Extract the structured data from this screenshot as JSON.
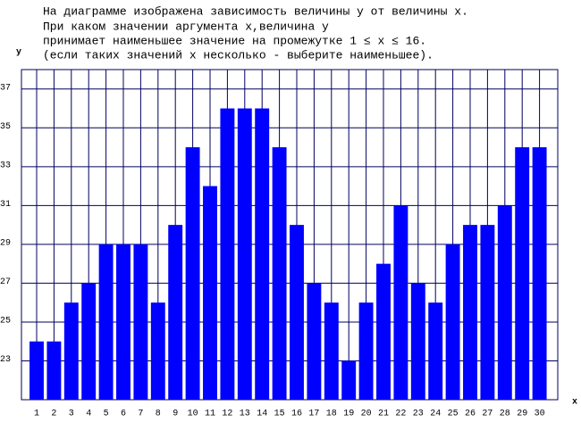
{
  "chart_data": {
    "type": "bar",
    "text_lines": [
      "На диаграмме изображена зависимость величины y от величины x.",
      "При каком значении аргумента x,величина y",
      "принимает наименьшее значение на промежутке 1 ≤ x ≤ 16.",
      "(если таких значений x несколько - выберите наименьшее)."
    ],
    "y_label": "y",
    "x_label": "x",
    "categories": [
      "1",
      "2",
      "3",
      "4",
      "5",
      "6",
      "7",
      "8",
      "9",
      "10",
      "11",
      "12",
      "13",
      "14",
      "15",
      "16",
      "17",
      "18",
      "19",
      "20",
      "21",
      "22",
      "23",
      "24",
      "25",
      "26",
      "27",
      "28",
      "29",
      "30"
    ],
    "values": [
      24,
      24,
      26,
      27,
      29,
      29,
      29,
      26,
      30,
      34,
      32,
      36,
      36,
      36,
      34,
      30,
      27,
      26,
      23,
      26,
      28,
      31,
      27,
      26,
      29,
      30,
      30,
      31,
      34,
      34
    ],
    "color": "#0000ff",
    "ylim": [
      21,
      38
    ],
    "yticks": [
      23,
      25,
      27,
      29,
      31,
      33,
      35,
      37
    ],
    "grid": true
  }
}
